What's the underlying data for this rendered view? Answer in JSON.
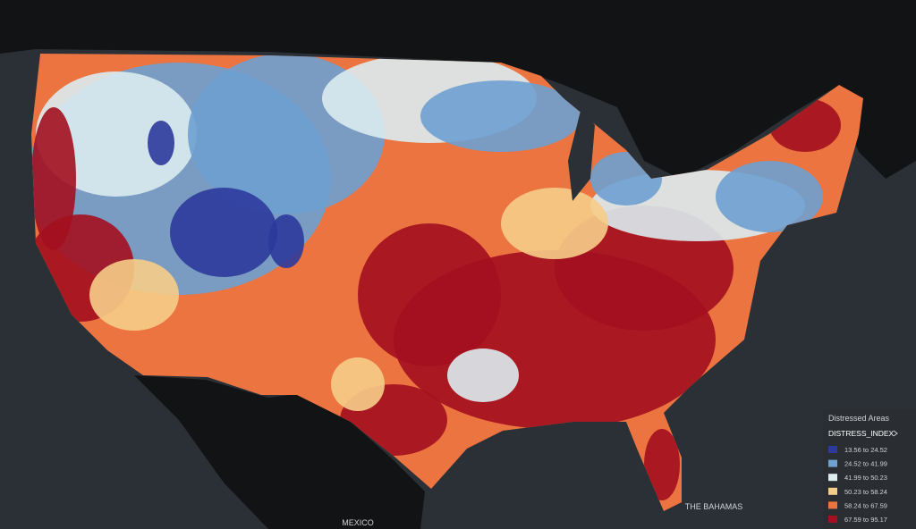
{
  "legend": {
    "title": "Distressed Areas",
    "field": "DISTRESS_INDEX",
    "items": [
      {
        "label": "13.56 to 24.52",
        "color": "#2c3a9c"
      },
      {
        "label": "24.52 to 41.99",
        "color": "#6ea0d0"
      },
      {
        "label": "41.99 to 50.23",
        "color": "#dcecef"
      },
      {
        "label": "50.23 to 58.24",
        "color": "#f6cd88"
      },
      {
        "label": "58.24 to 67.59",
        "color": "#ec7440"
      },
      {
        "label": "67.59 to 95.17",
        "color": "#a3101f"
      }
    ]
  },
  "labels": {
    "country": "MEXICO",
    "region": "THE BAHAMAS"
  }
}
